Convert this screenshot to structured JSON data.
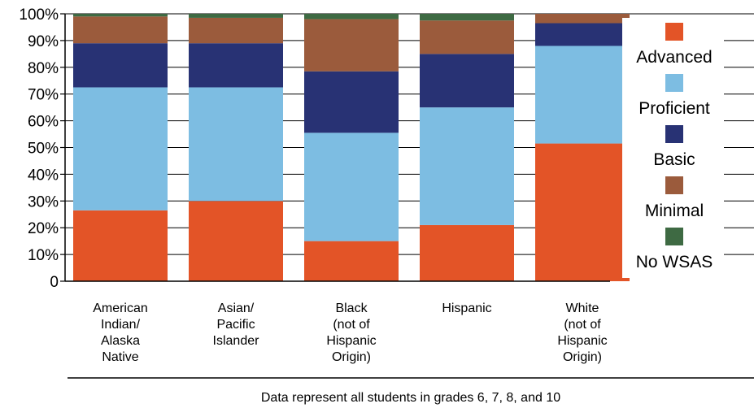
{
  "chart_data": {
    "type": "bar",
    "stacked": true,
    "categories": [
      [
        "American",
        "Indian/",
        "Alaska",
        "Native"
      ],
      [
        "Asian/",
        "Pacific",
        "Islander"
      ],
      [
        "Black",
        "(not of",
        "Hispanic",
        "Origin)"
      ],
      [
        "Hispanic"
      ],
      [
        "White",
        "(not of",
        "Hispanic",
        "Origin)"
      ]
    ],
    "series": [
      {
        "name": "Advanced",
        "color": "#e35427",
        "values": [
          26.5,
          30,
          15,
          21,
          51.5
        ]
      },
      {
        "name": "Proficient",
        "color": "#7dbde2",
        "values": [
          46,
          42.5,
          40.5,
          44,
          36.5
        ]
      },
      {
        "name": "Basic",
        "color": "#283274",
        "values": [
          16.5,
          16.5,
          23,
          20,
          8.5
        ]
      },
      {
        "name": "Minimal",
        "color": "#9b5b3c",
        "values": [
          10,
          9.5,
          19.5,
          12.5,
          3.5
        ]
      },
      {
        "name": "No WSAS",
        "color": "#3e6a43",
        "values": [
          1,
          1.5,
          2,
          2.5,
          0
        ]
      }
    ],
    "ylim": [
      0,
      100
    ],
    "yticks": [
      "0",
      "10%",
      "20%",
      "30%",
      "40%",
      "50%",
      "60%",
      "70%",
      "80%",
      "90%",
      "100%"
    ],
    "grid": true,
    "legend_position": "right",
    "footnote": "Data represent all students in grades 6, 7, 8, and 10"
  }
}
